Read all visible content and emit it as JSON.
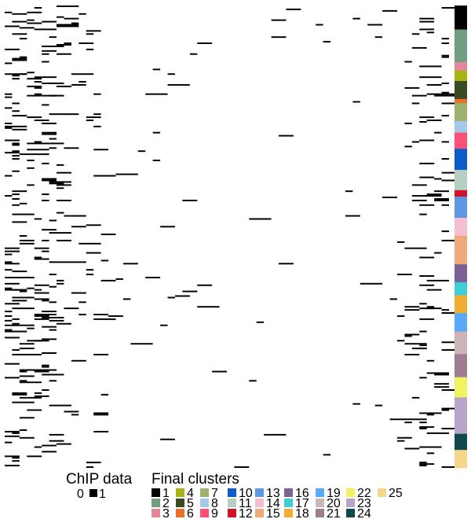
{
  "chart_data": {
    "type": "heatmap",
    "title": "",
    "xlabel": "",
    "ylabel": "",
    "value_scale": [
      0,
      1
    ],
    "value_colors": {
      "0": "#ffffff",
      "1": "#000000"
    },
    "cluster_order": [
      "1",
      "2",
      "3",
      "4",
      "5",
      "6",
      "7",
      "8",
      "9",
      "10",
      "11",
      "12",
      "13",
      "14",
      "15",
      "16",
      "17",
      "18",
      "19",
      "20",
      "21",
      "22",
      "23",
      "24",
      "25"
    ],
    "cluster_colors": {
      "1": "#000000",
      "2": "#6f9e81",
      "3": "#e4879b",
      "4": "#a8b416",
      "5": "#3a4a23",
      "6": "#ec6f2d",
      "7": "#9eb06d",
      "8": "#a4c8e8",
      "9": "#fd4f78",
      "10": "#0b5cc6",
      "11": "#b6cfc3",
      "12": "#d3112d",
      "13": "#5e98e2",
      "14": "#f4bdd0",
      "15": "#efaa79",
      "16": "#7a6296",
      "17": "#3fcdd8",
      "18": "#f1ad32",
      "19": "#59a9fb",
      "20": "#cdb4b9",
      "21": "#9c7e91",
      "22": "#eef35e",
      "23": "#b7a5c9",
      "24": "#10494c",
      "25": "#f5d78c"
    },
    "cluster_fractions": [
      0.052,
      0.071,
      0.018,
      0.023,
      0.039,
      0.009,
      0.039,
      0.025,
      0.035,
      0.046,
      0.044,
      0.014,
      0.046,
      0.039,
      0.062,
      0.039,
      0.028,
      0.039,
      0.04,
      0.049,
      0.05,
      0.044,
      0.079,
      0.035,
      0.039
    ],
    "approx_rows": 300,
    "approx_columns": 60,
    "signal_density_by_column_group": {
      "left_columns": "high",
      "middle_columns": "very_low",
      "right_columns": "moderate"
    }
  },
  "legend": {
    "chip_title": "ChIP data",
    "chip_items": [
      {
        "label": "0",
        "color": "#ffffff"
      },
      {
        "label": "1",
        "color": "#000000"
      }
    ],
    "clusters_title": "Final clusters",
    "clusters": [
      {
        "label": "1",
        "color": "#000000"
      },
      {
        "label": "2",
        "color": "#6f9e81"
      },
      {
        "label": "3",
        "color": "#e4879b"
      },
      {
        "label": "4",
        "color": "#a8b416"
      },
      {
        "label": "5",
        "color": "#3a4a23"
      },
      {
        "label": "6",
        "color": "#ec6f2d"
      },
      {
        "label": "7",
        "color": "#9eb06d"
      },
      {
        "label": "8",
        "color": "#a4c8e8"
      },
      {
        "label": "9",
        "color": "#fd4f78"
      },
      {
        "label": "10",
        "color": "#0b5cc6"
      },
      {
        "label": "11",
        "color": "#b6cfc3"
      },
      {
        "label": "12",
        "color": "#d3112d"
      },
      {
        "label": "13",
        "color": "#5e98e2"
      },
      {
        "label": "14",
        "color": "#f4bdd0"
      },
      {
        "label": "15",
        "color": "#efaa79"
      },
      {
        "label": "16",
        "color": "#7a6296"
      },
      {
        "label": "17",
        "color": "#3fcdd8"
      },
      {
        "label": "18",
        "color": "#f1ad32"
      },
      {
        "label": "19",
        "color": "#59a9fb"
      },
      {
        "label": "20",
        "color": "#cdb4b9"
      },
      {
        "label": "21",
        "color": "#9c7e91"
      },
      {
        "label": "22",
        "color": "#eef35e"
      },
      {
        "label": "23",
        "color": "#b7a5c9"
      },
      {
        "label": "24",
        "color": "#10494c"
      },
      {
        "label": "25",
        "color": "#f5d78c"
      }
    ]
  }
}
